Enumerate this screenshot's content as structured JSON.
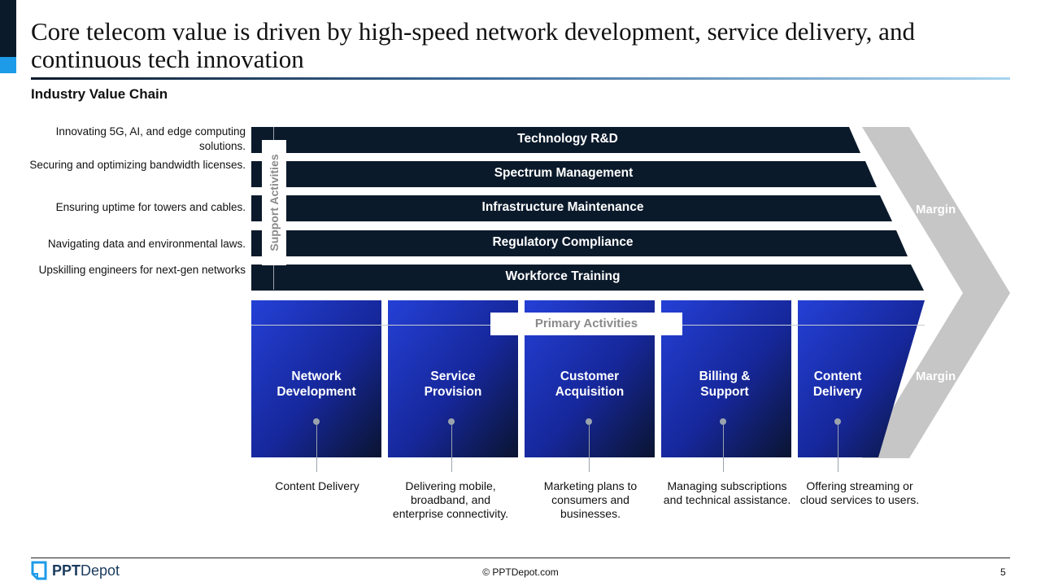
{
  "slide": {
    "title": "Core telecom value is driven by high-speed network development, service delivery, and continuous tech innovation",
    "subtitle": "Industry Value Chain",
    "page_number": "5",
    "copyright": "© PPTDepot.com",
    "logo": {
      "text_bold": "PPT",
      "text_regular": "Depot",
      "icon": "document-icon"
    }
  },
  "colors": {
    "dark_navy": "#0b1a2b",
    "primary_blue": "#1f3fcf",
    "margin_gray": "#c6c6c6",
    "accent_blue": "#1e9be8"
  },
  "support": {
    "label": "Support Activities",
    "activities": [
      {
        "label": "Technology R&D",
        "description": "Innovating 5G, AI, and edge computing solutions."
      },
      {
        "label": "Spectrum Management",
        "description": "Securing and optimizing bandwidth licenses."
      },
      {
        "label": "Infrastructure Maintenance",
        "description": "Ensuring uptime for towers and cables."
      },
      {
        "label": "Regulatory Compliance",
        "description": "Navigating data and environmental laws."
      },
      {
        "label": "Workforce Training",
        "description": "Upskilling engineers for next-gen networks"
      }
    ]
  },
  "primary": {
    "label": "Primary Activities",
    "activities": [
      {
        "title_line1": "Network",
        "title_line2": "Development",
        "description": "Content Delivery"
      },
      {
        "title_line1": "Service",
        "title_line2": "Provision",
        "description": "Delivering mobile, broadband, and enterprise connectivity."
      },
      {
        "title_line1": "Customer",
        "title_line2": "Acquisition",
        "description": "Marketing plans to consumers and businesses."
      },
      {
        "title_line1": "Billing &",
        "title_line2": "Support",
        "description": "Managing subscriptions and technical assistance."
      },
      {
        "title_line1": "Content",
        "title_line2": "Delivery",
        "description": "Offering streaming or cloud services to users."
      }
    ]
  },
  "margin": {
    "top_label": "Margin",
    "bottom_label": "Margin"
  }
}
